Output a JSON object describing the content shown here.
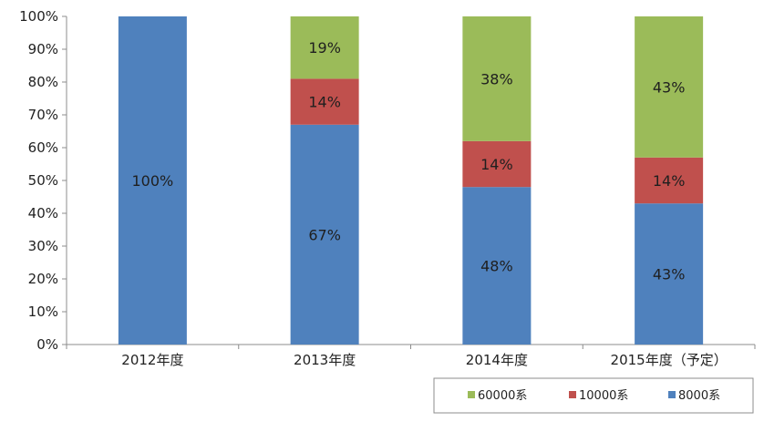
{
  "chart_data": {
    "type": "bar",
    "stacked": true,
    "percent": true,
    "categories": [
      "2012年度",
      "2013年度",
      "2014年度",
      "2015年度（予定）"
    ],
    "series": [
      {
        "name": "8000系",
        "color": "#4F81BD",
        "values": [
          100,
          67,
          48,
          43
        ],
        "labels": [
          "100%",
          "67%",
          "48%",
          "43%"
        ]
      },
      {
        "name": "10000系",
        "color": "#C0504D",
        "values": [
          0,
          14,
          14,
          14
        ],
        "labels": [
          "",
          "14%",
          "14%",
          "14%"
        ]
      },
      {
        "name": "60000系",
        "color": "#9BBB59",
        "values": [
          0,
          19,
          38,
          43
        ],
        "labels": [
          "",
          "19%",
          "38%",
          "43%"
        ]
      }
    ],
    "ylim": [
      0,
      100
    ],
    "yticks": [
      "0%",
      "10%",
      "20%",
      "30%",
      "40%",
      "50%",
      "60%",
      "70%",
      "80%",
      "90%",
      "100%"
    ],
    "legend": {
      "position": "bottom-right",
      "order": [
        "60000系",
        "10000系",
        "8000系"
      ]
    },
    "grid": false
  }
}
